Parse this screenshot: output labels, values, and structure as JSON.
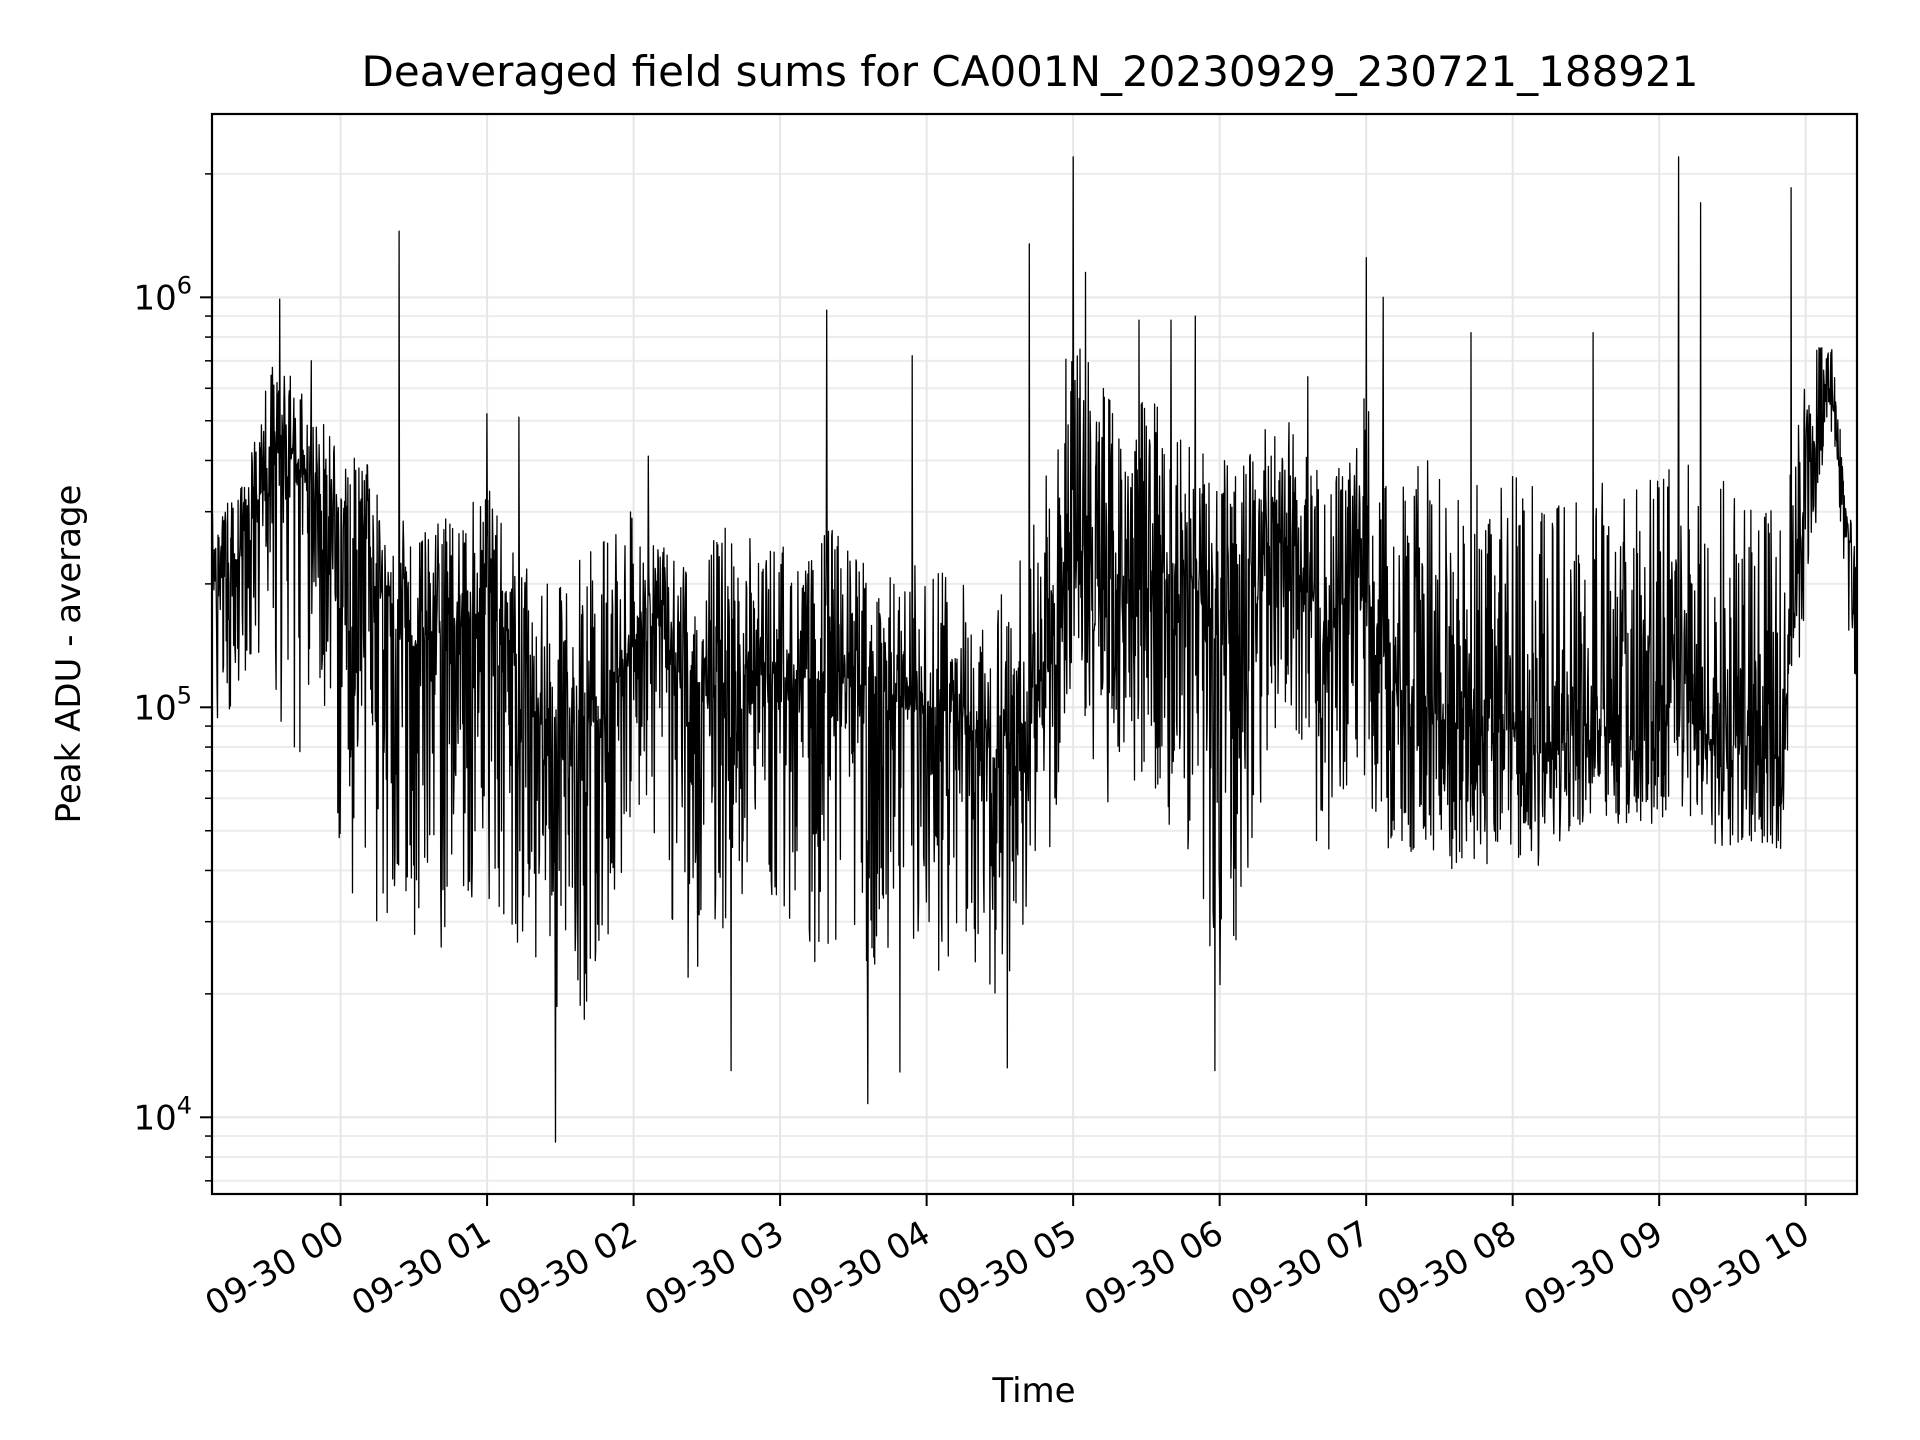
{
  "chart_data": {
    "type": "line",
    "title": "Deaveraged field sums for CA001N_20230929_230721_188921",
    "xlabel": "Time",
    "ylabel": "Peak ADU - average",
    "yscale": "log",
    "ylim": [
      6500,
      2800000
    ],
    "xlim": [
      "2023-09-29 23:07:21",
      "2023-09-30 10:21:00"
    ],
    "grid": true,
    "line_color": "#000000",
    "x_ticks": [
      {
        "t": "2023-09-30 00:00",
        "label": "09-30 00"
      },
      {
        "t": "2023-09-30 01:00",
        "label": "09-30 01"
      },
      {
        "t": "2023-09-30 02:00",
        "label": "09-30 02"
      },
      {
        "t": "2023-09-30 03:00",
        "label": "09-30 03"
      },
      {
        "t": "2023-09-30 04:00",
        "label": "09-30 04"
      },
      {
        "t": "2023-09-30 05:00",
        "label": "09-30 05"
      },
      {
        "t": "2023-09-30 06:00",
        "label": "09-30 06"
      },
      {
        "t": "2023-09-30 07:00",
        "label": "09-30 07"
      },
      {
        "t": "2023-09-30 08:00",
        "label": "09-30 08"
      },
      {
        "t": "2023-09-30 09:00",
        "label": "09-30 09"
      },
      {
        "t": "2023-09-30 10:00",
        "label": "09-30 10"
      }
    ],
    "y_ticks": [
      {
        "value": 10000,
        "base": "10",
        "exp": "4"
      },
      {
        "value": 100000,
        "base": "10",
        "exp": "5"
      },
      {
        "value": 1000000,
        "base": "10",
        "exp": "6"
      }
    ],
    "series": [
      {
        "x": [
          "2023-09-29 23:10",
          "2023-09-29 23:20",
          "2023-09-29 23:30",
          "2023-09-29 23:40",
          "2023-09-29 23:50",
          "2023-09-30 00:00",
          "2023-09-30 00:10",
          "2023-09-30 00:20",
          "2023-09-30 00:30",
          "2023-09-30 00:40",
          "2023-09-30 00:50",
          "2023-09-30 01:00",
          "2023-09-30 01:10",
          "2023-09-30 01:20",
          "2023-09-30 01:30",
          "2023-09-30 01:40",
          "2023-09-30 01:50",
          "2023-09-30 02:00",
          "2023-09-30 02:10",
          "2023-09-30 02:20",
          "2023-09-30 02:30",
          "2023-09-30 02:40",
          "2023-09-30 02:50",
          "2023-09-30 03:00",
          "2023-09-30 03:10",
          "2023-09-30 03:20",
          "2023-09-30 03:30",
          "2023-09-30 03:40",
          "2023-09-30 03:50",
          "2023-09-30 04:00",
          "2023-09-30 04:10",
          "2023-09-30 04:20",
          "2023-09-30 04:30",
          "2023-09-30 04:40",
          "2023-09-30 04:50",
          "2023-09-30 05:00",
          "2023-09-30 05:10",
          "2023-09-30 05:20",
          "2023-09-30 05:30",
          "2023-09-30 05:40",
          "2023-09-30 05:50",
          "2023-09-30 06:00",
          "2023-09-30 06:10",
          "2023-09-30 06:20",
          "2023-09-30 06:30",
          "2023-09-30 06:40",
          "2023-09-30 06:50",
          "2023-09-30 07:00",
          "2023-09-30 07:10",
          "2023-09-30 07:20",
          "2023-09-30 07:30",
          "2023-09-30 07:40",
          "2023-09-30 07:50",
          "2023-09-30 08:00",
          "2023-09-30 08:10",
          "2023-09-30 08:20",
          "2023-09-30 08:30",
          "2023-09-30 08:40",
          "2023-09-30 08:50",
          "2023-09-30 09:00",
          "2023-09-30 09:10",
          "2023-09-30 09:20",
          "2023-09-30 09:30",
          "2023-09-30 09:40",
          "2023-09-30 09:50",
          "2023-09-30 10:00",
          "2023-09-30 10:10",
          "2023-09-30 10:20"
        ],
        "y": [
          200000,
          230000,
          380000,
          420000,
          320000,
          280000,
          230000,
          170000,
          140000,
          150000,
          160000,
          170000,
          150000,
          95000,
          75000,
          90000,
          100000,
          150000,
          165000,
          110000,
          105000,
          115000,
          120000,
          120000,
          115000,
          120000,
          115000,
          110000,
          100000,
          95000,
          100000,
          80000,
          75000,
          90000,
          130000,
          250000,
          220000,
          200000,
          200000,
          210000,
          200000,
          130000,
          150000,
          280000,
          250000,
          140000,
          160000,
          190000,
          110000,
          100000,
          95000,
          90000,
          85000,
          90000,
          80000,
          80000,
          90000,
          85000,
          80000,
          90000,
          95000,
          85000,
          80000,
          80000,
          75000,
          380000,
          600000,
          200000
        ],
        "low": [
          90000,
          100000,
          150000,
          60000,
          120000,
          40000,
          30000,
          25000,
          28000,
          25000,
          30000,
          35000,
          25000,
          22000,
          18000,
          17000,
          25000,
          60000,
          45000,
          20000,
          25000,
          30000,
          40000,
          30000,
          25000,
          22000,
          30000,
          15000,
          20000,
          18000,
          25000,
          22000,
          18000,
          30000,
          40000,
          100000,
          55000,
          60000,
          70000,
          50000,
          40000,
          17000,
          30000,
          80000,
          100000,
          40000,
          40000,
          60000,
          40000,
          45000,
          42000,
          38000,
          40000,
          42000,
          40000,
          45000,
          48000,
          50000,
          48000,
          45000,
          50000,
          45000,
          44000,
          44000,
          45000,
          180000,
          500000,
          100000
        ],
        "high": [
          300000,
          350000,
          700000,
          650000,
          550000,
          420000,
          400000,
          350000,
          250000,
          300000,
          300000,
          350000,
          250000,
          200000,
          200000,
          250000,
          300000,
          300000,
          250000,
          230000,
          250000,
          300000,
          250000,
          260000,
          220000,
          280000,
          250000,
          220000,
          200000,
          250000,
          220000,
          190000,
          200000,
          250000,
          400000,
          900000,
          700000,
          500000,
          600000,
          550000,
          500000,
          400000,
          400000,
          500000,
          500000,
          380000,
          400000,
          600000,
          400000,
          400000,
          400000,
          350000,
          380000,
          380000,
          350000,
          380000,
          400000,
          380000,
          350000,
          400000,
          400000,
          380000,
          350000,
          380000,
          300000,
          700000,
          850000,
          250000
        ]
      }
    ],
    "spikes": [
      {
        "t": "2023-09-29 23:35",
        "y": 990000
      },
      {
        "t": "2023-09-29 23:48",
        "y": 700000
      },
      {
        "t": "2023-09-30 00:24",
        "y": 1450000
      },
      {
        "t": "2023-09-30 01:00",
        "y": 520000
      },
      {
        "t": "2023-09-30 01:13",
        "y": 510000
      },
      {
        "t": "2023-09-30 01:28",
        "y": 8700
      },
      {
        "t": "2023-09-30 02:06",
        "y": 410000
      },
      {
        "t": "2023-09-30 02:40",
        "y": 13000
      },
      {
        "t": "2023-09-30 03:19",
        "y": 930000
      },
      {
        "t": "2023-09-30 03:36",
        "y": 10800
      },
      {
        "t": "2023-09-30 03:49",
        "y": 12900
      },
      {
        "t": "2023-09-30 03:54",
        "y": 720000
      },
      {
        "t": "2023-09-30 04:33",
        "y": 13200
      },
      {
        "t": "2023-09-30 04:42",
        "y": 1350000
      },
      {
        "t": "2023-09-30 05:00",
        "y": 2200000
      },
      {
        "t": "2023-09-30 05:05",
        "y": 1150000
      },
      {
        "t": "2023-09-30 05:27",
        "y": 880000
      },
      {
        "t": "2023-09-30 05:40",
        "y": 880000
      },
      {
        "t": "2023-09-30 05:50",
        "y": 900000
      },
      {
        "t": "2023-09-30 05:58",
        "y": 13000
      },
      {
        "t": "2023-09-30 06:36",
        "y": 640000
      },
      {
        "t": "2023-09-30 07:00",
        "y": 1250000
      },
      {
        "t": "2023-09-30 07:07",
        "y": 1000000
      },
      {
        "t": "2023-09-30 07:43",
        "y": 820000
      },
      {
        "t": "2023-09-30 08:33",
        "y": 820000
      },
      {
        "t": "2023-09-30 09:08",
        "y": 2200000
      },
      {
        "t": "2023-09-30 09:17",
        "y": 1700000
      },
      {
        "t": "2023-09-30 09:54",
        "y": 1850000
      }
    ]
  }
}
